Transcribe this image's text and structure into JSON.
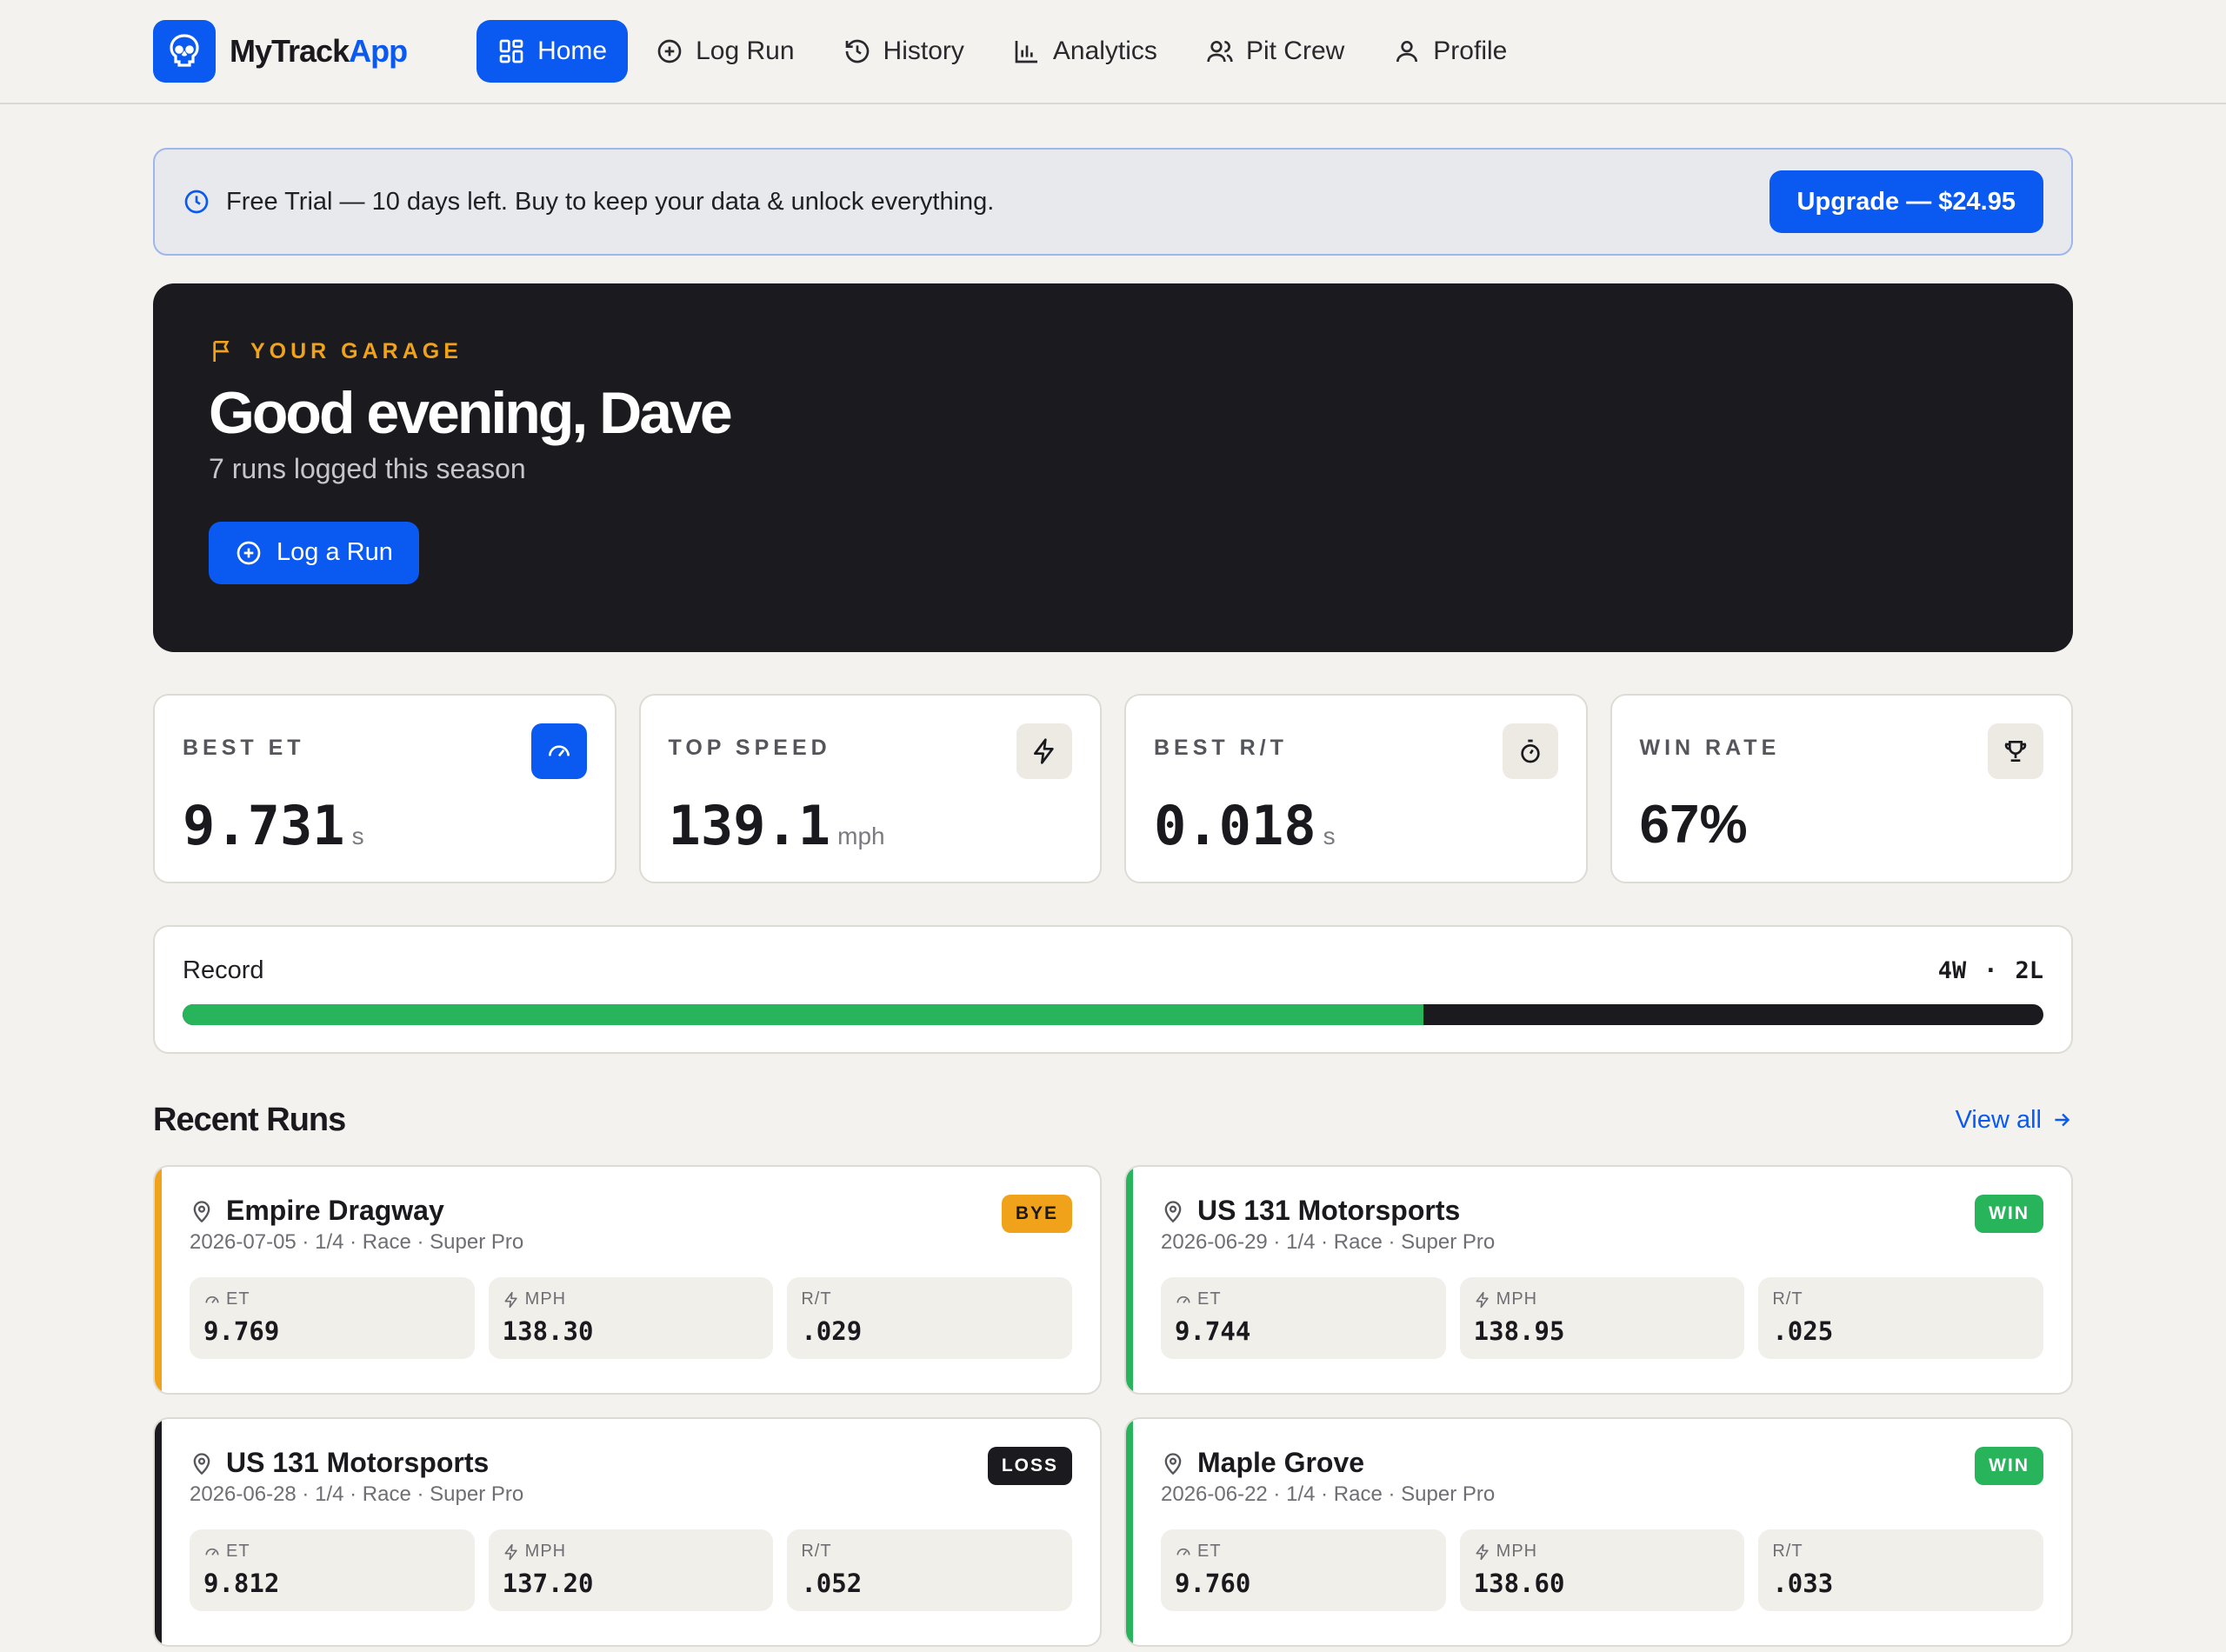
{
  "app": {
    "name_part1": "MyTrack",
    "name_part2": "App"
  },
  "nav": {
    "items": [
      {
        "label": "Home",
        "icon": "grid-icon",
        "active": true
      },
      {
        "label": "Log Run",
        "icon": "plus-circle-icon"
      },
      {
        "label": "History",
        "icon": "history-icon"
      },
      {
        "label": "Analytics",
        "icon": "bar-chart-icon"
      },
      {
        "label": "Pit Crew",
        "icon": "users-icon"
      },
      {
        "label": "Profile",
        "icon": "user-icon"
      }
    ]
  },
  "banner": {
    "text": "Free Trial — 10 days left. Buy to keep your data & unlock everything.",
    "button": "Upgrade — $24.95"
  },
  "hero": {
    "eyebrow": "YOUR GARAGE",
    "title": "Good evening, Dave",
    "subtitle": "7 runs logged this season",
    "button": "Log a Run"
  },
  "stats": [
    {
      "label": "BEST ET",
      "value": "9.731",
      "unit": "s",
      "icon": "gauge-icon"
    },
    {
      "label": "TOP SPEED",
      "value": "139.1",
      "unit": "mph",
      "icon": "bolt-icon"
    },
    {
      "label": "BEST R/T",
      "value": "0.018",
      "unit": "s",
      "icon": "stopwatch-icon"
    },
    {
      "label": "WIN RATE",
      "value": "67%",
      "unit": "",
      "icon": "trophy-icon"
    }
  ],
  "record": {
    "label": "Record",
    "wins": "4W",
    "separator": "·",
    "losses": "2L",
    "win_fraction": 0.667
  },
  "recent": {
    "title": "Recent Runs",
    "view_all": "View all",
    "metric_labels": {
      "et": "ET",
      "mph": "MPH",
      "rt": "R/T"
    },
    "runs": [
      {
        "track": "Empire Dragway",
        "meta": "2026-07-05 · 1/4 · Race · Super Pro",
        "result": "BYE",
        "color": "#f0a31a",
        "et": "9.769",
        "mph": "138.30",
        "rt": ".029"
      },
      {
        "track": "US 131 Motorsports",
        "meta": "2026-06-29 · 1/4 · Race · Super Pro",
        "result": "WIN",
        "color": "#27b45a",
        "et": "9.744",
        "mph": "138.95",
        "rt": ".025"
      },
      {
        "track": "US 131 Motorsports",
        "meta": "2026-06-28 · 1/4 · Race · Super Pro",
        "result": "LOSS",
        "color": "#1b1b1f",
        "et": "9.812",
        "mph": "137.20",
        "rt": ".052"
      },
      {
        "track": "Maple Grove",
        "meta": "2026-06-22 · 1/4 · Race · Super Pro",
        "result": "WIN",
        "color": "#27b45a",
        "et": "9.760",
        "mph": "138.60",
        "rt": ".033"
      }
    ]
  }
}
